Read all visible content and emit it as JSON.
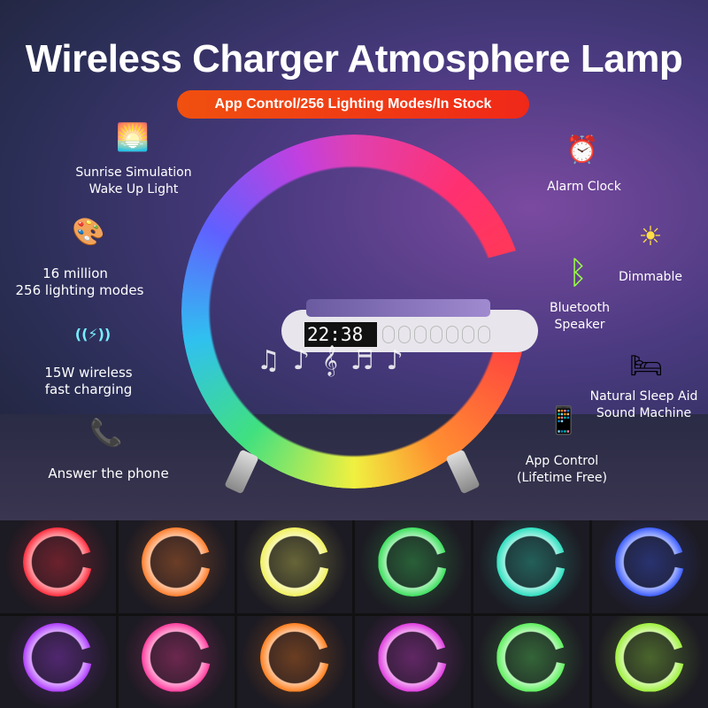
{
  "title": "Wireless Charger Atmosphere Lamp",
  "banner": "App Control/256 Lighting Modes/In Stock",
  "clock": "22:38",
  "features_left": [
    {
      "icon": "sunrise-icon",
      "glyph": "🌅",
      "line1": "Sunrise Simulation",
      "line2": "Wake Up Light"
    },
    {
      "icon": "palette-icon",
      "glyph": "🎨",
      "line1": "16 million",
      "line2": "256 lighting modes"
    },
    {
      "icon": "wireless-charging-icon",
      "glyph": "((⚡))",
      "line1": "15W wireless",
      "line2": "fast charging"
    },
    {
      "icon": "phone-call-icon",
      "glyph": "📞",
      "line1": "Answer the phone",
      "line2": ""
    }
  ],
  "features_right": [
    {
      "icon": "alarm-clock-icon",
      "glyph": "⏰",
      "line1": "Alarm Clock",
      "line2": ""
    },
    {
      "icon": "bluetooth-icon",
      "glyph": "ᛒ",
      "line1": "Bluetooth",
      "line2": "Speaker"
    },
    {
      "icon": "dimmable-icon",
      "glyph": "☀",
      "line1": "Dimmable",
      "line2": ""
    },
    {
      "icon": "sleep-bed-icon",
      "glyph": "🛏",
      "line1": "Natural Sleep Aid",
      "line2": "Sound Machine"
    },
    {
      "icon": "app-control-icon",
      "glyph": "📱",
      "line1": "App Control",
      "line2": "(Lifetime Free)"
    }
  ],
  "tile_colors": [
    "#ff3040",
    "#ff8030",
    "#f0f060",
    "#40e060",
    "#30e0c0",
    "#4060ff",
    "#b040ff",
    "#ff40a0",
    "#ff8020",
    "#e040e0",
    "#60f060",
    "#a0f040"
  ]
}
